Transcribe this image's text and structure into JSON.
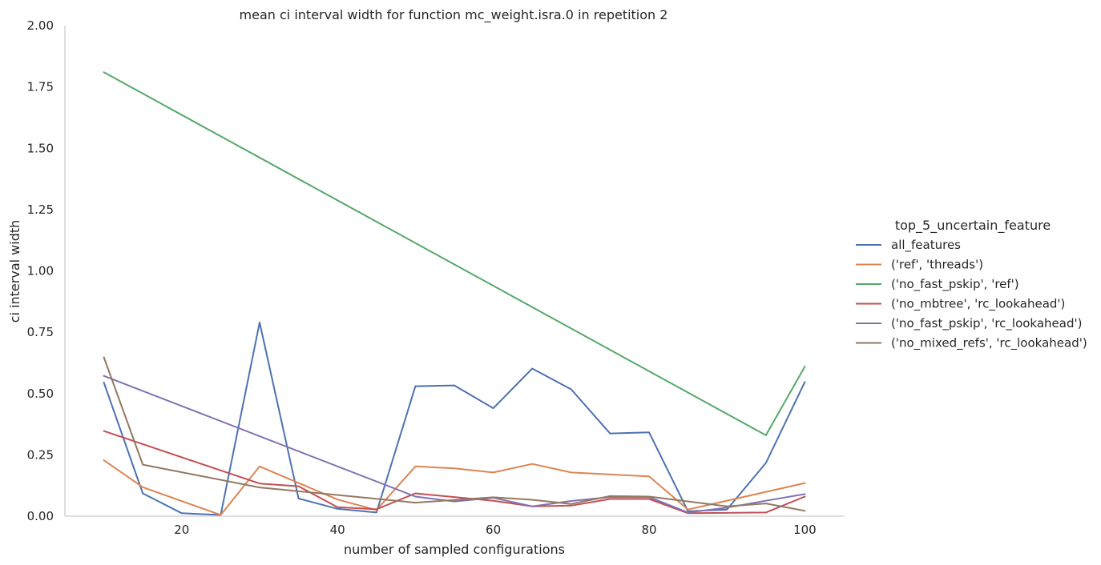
{
  "chart_data": {
    "type": "line",
    "title": "mean ci interval width for function mc_weight.isra.0 in repetition 2",
    "xlabel": "number of sampled configurations",
    "ylabel": "ci interval width",
    "xlim": [
      5,
      105
    ],
    "ylim": [
      0,
      2.0
    ],
    "xticks": [
      20,
      40,
      60,
      80,
      100
    ],
    "xtick_labels": [
      "20",
      "40",
      "60",
      "80",
      "100"
    ],
    "yticks": [
      0,
      0.25,
      0.5,
      0.75,
      1.0,
      1.25,
      1.5,
      1.75,
      2.0
    ],
    "ytick_labels": [
      "0.00",
      "0.25",
      "0.50",
      "0.75",
      "1.00",
      "1.25",
      "1.50",
      "1.75",
      "2.00"
    ],
    "grid": false,
    "legend": {
      "title": "top_5_uncertain_feature",
      "placement": "right, outside"
    },
    "series": [
      {
        "name": "all_features",
        "color": "#4c72b0",
        "x": [
          10,
          15,
          20,
          25,
          30,
          35,
          40,
          45,
          50,
          55,
          60,
          65,
          70,
          75,
          80,
          85,
          90,
          95,
          100
        ],
        "y": [
          0.545,
          0.093,
          0.012,
          0.005,
          0.79,
          0.072,
          0.03,
          0.015,
          0.53,
          0.533,
          0.44,
          0.602,
          0.517,
          0.337,
          0.342,
          0.02,
          0.027,
          0.217,
          0.547
        ]
      },
      {
        "name": "('ref', 'threads')",
        "color": "#dd8452",
        "x": [
          10,
          15,
          25,
          30,
          40,
          45,
          50,
          55,
          60,
          65,
          70,
          80,
          85,
          100
        ],
        "y": [
          0.228,
          0.118,
          0.005,
          0.203,
          0.068,
          0.025,
          0.203,
          0.195,
          0.178,
          0.213,
          0.178,
          0.162,
          0.027,
          0.135
        ]
      },
      {
        "name": "('no_fast_pskip', 'ref')",
        "color": "#55a868",
        "x": [
          10,
          95,
          100
        ],
        "y": [
          1.81,
          0.33,
          0.61
        ]
      },
      {
        "name": "('no_mbtree', 'rc_lookahead')",
        "color": "#c44e52",
        "x": [
          10,
          30,
          35,
          40,
          45,
          50,
          60,
          65,
          70,
          75,
          80,
          85,
          95,
          100
        ],
        "y": [
          0.347,
          0.133,
          0.122,
          0.037,
          0.028,
          0.093,
          0.063,
          0.04,
          0.043,
          0.07,
          0.07,
          0.012,
          0.015,
          0.08
        ]
      },
      {
        "name": "('no_fast_pskip', 'rc_lookahead')",
        "color": "#8172b3",
        "x": [
          10,
          50,
          55,
          60,
          65,
          70,
          75,
          80,
          85,
          90,
          95,
          100
        ],
        "y": [
          0.572,
          0.08,
          0.06,
          0.075,
          0.04,
          0.062,
          0.078,
          0.078,
          0.015,
          0.035,
          0.063,
          0.09
        ]
      },
      {
        "name": "('no_mixed_refs', 'rc_lookahead')",
        "color": "#937860",
        "x": [
          10,
          15,
          30,
          50,
          60,
          65,
          70,
          75,
          80,
          90,
          95,
          100
        ],
        "y": [
          0.648,
          0.21,
          0.117,
          0.055,
          0.077,
          0.067,
          0.05,
          0.082,
          0.08,
          0.04,
          0.052,
          0.022
        ]
      }
    ]
  }
}
